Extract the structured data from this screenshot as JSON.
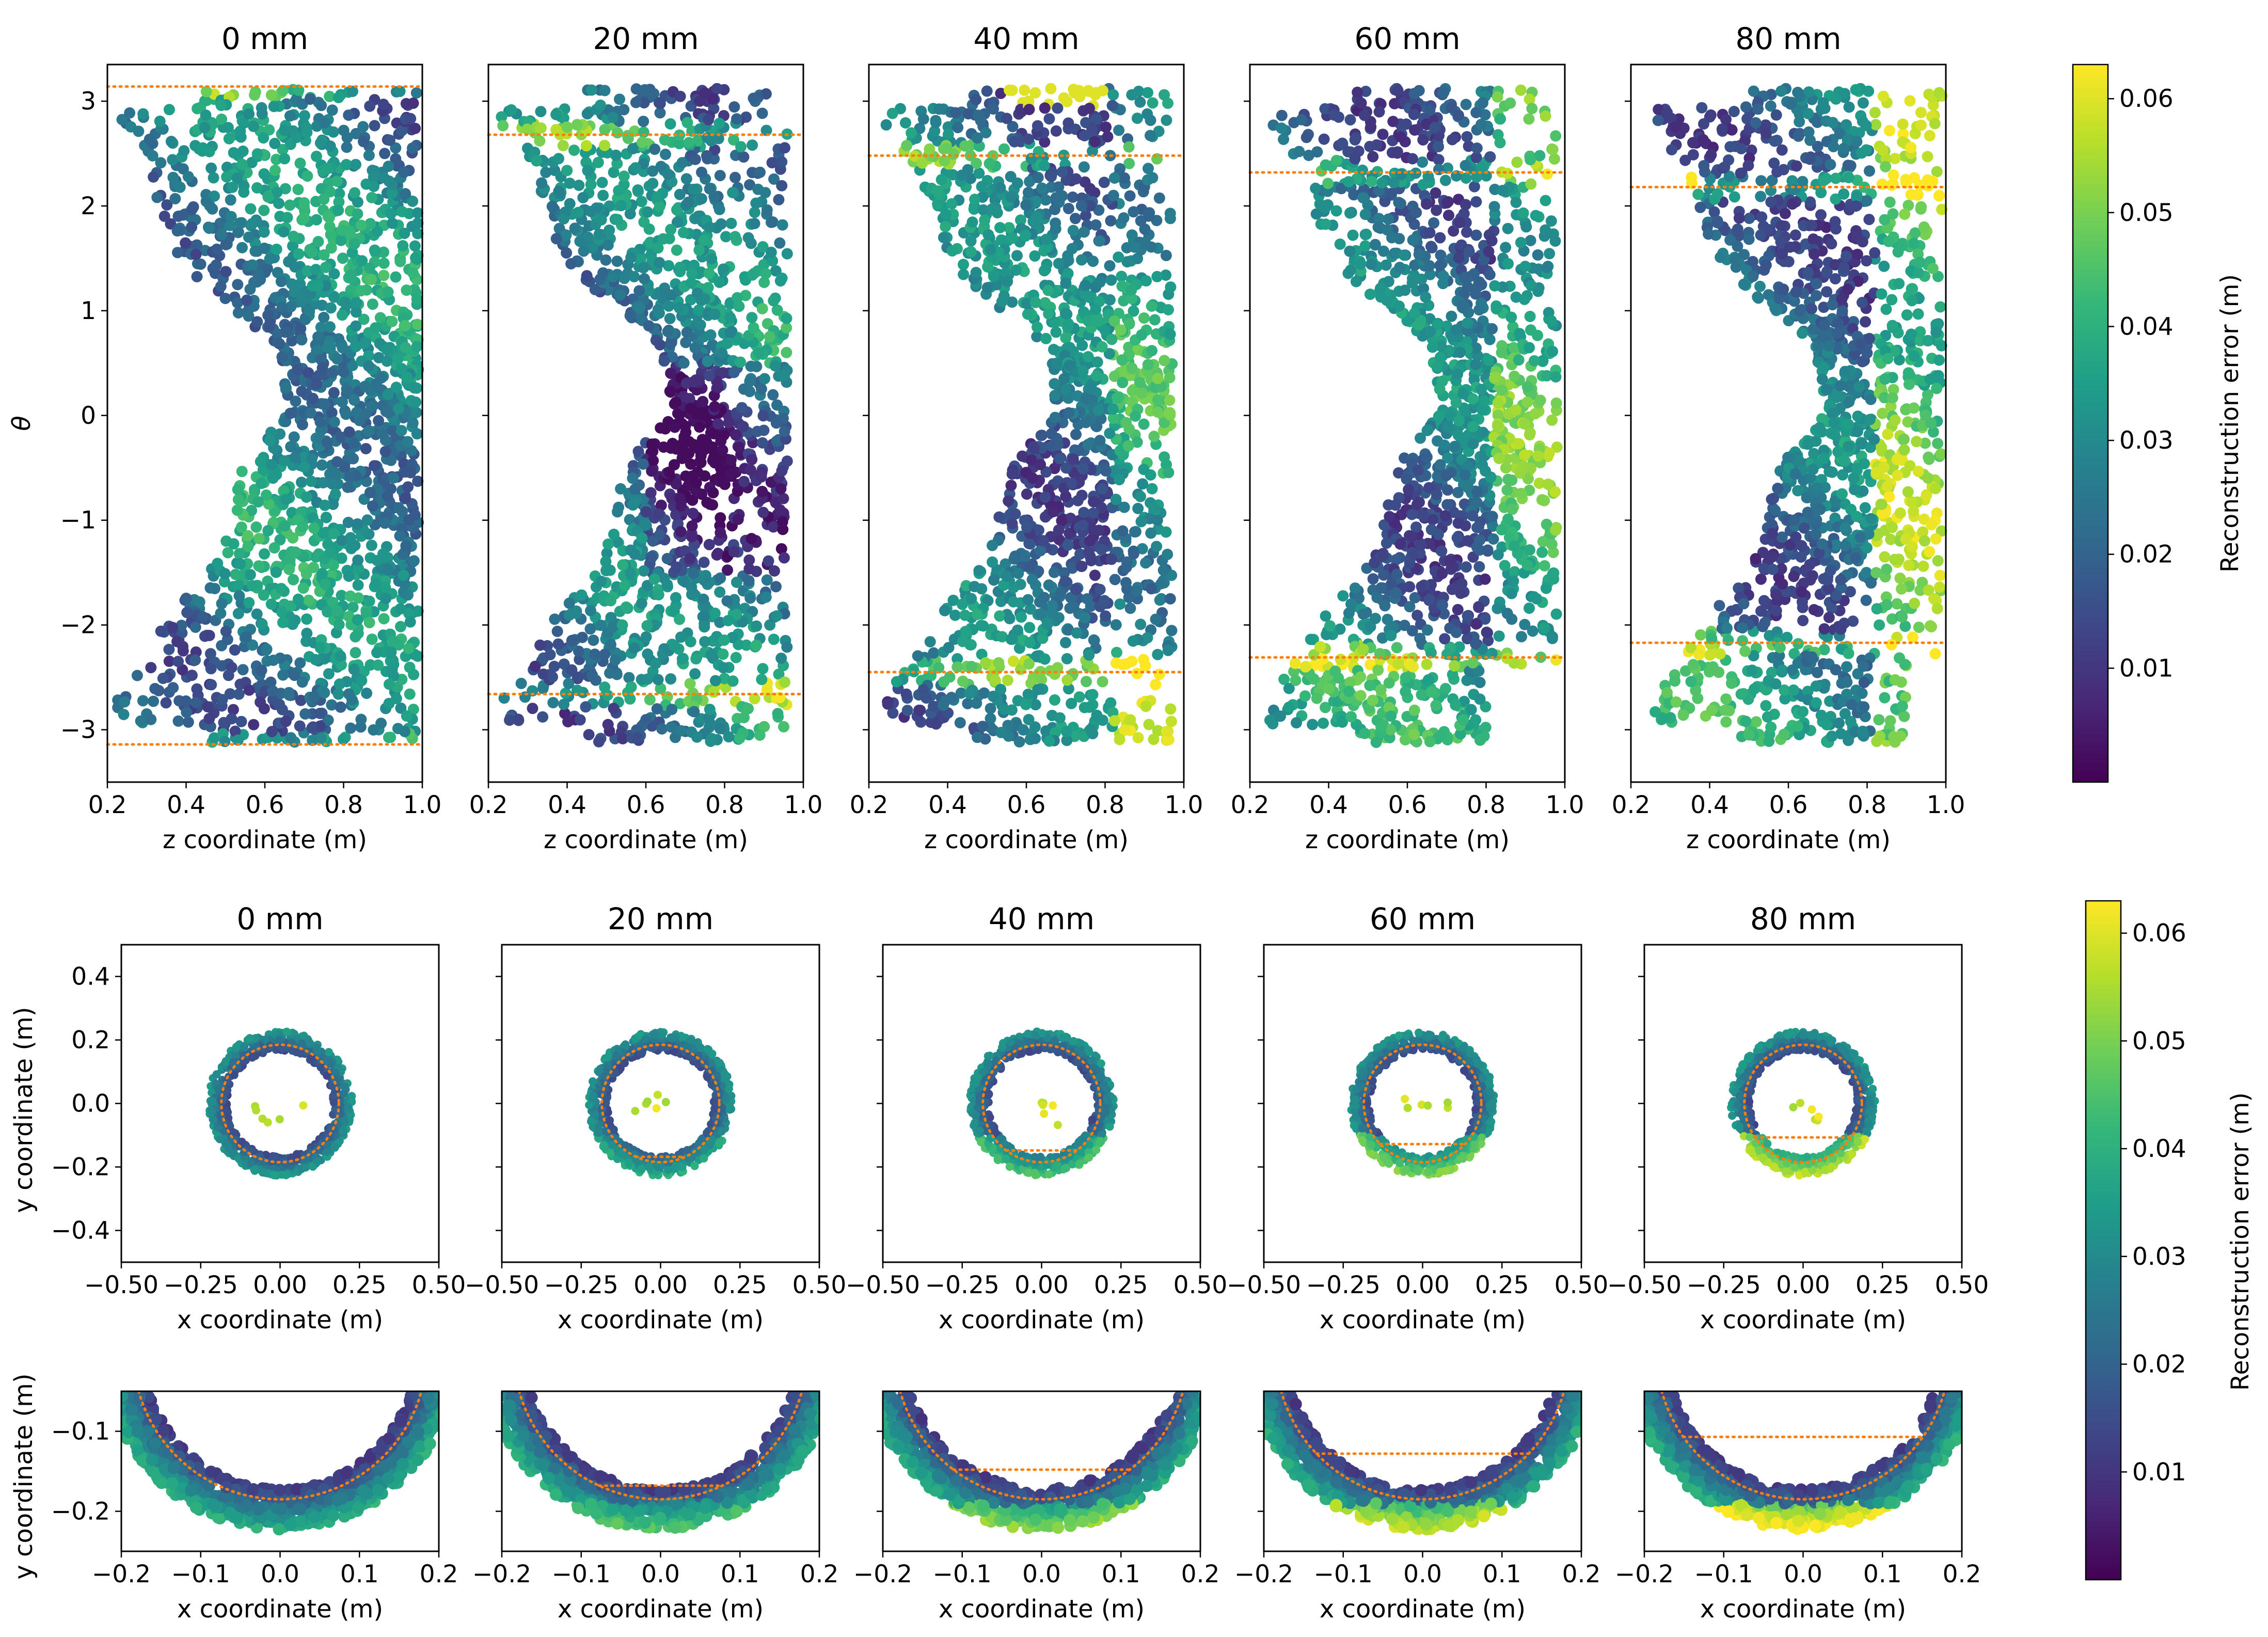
{
  "colors": {
    "viridis": [
      "#440154",
      "#482878",
      "#3e4989",
      "#31688e",
      "#26828e",
      "#1f9e89",
      "#35b779",
      "#6ece58",
      "#b5de2b",
      "#fde725"
    ],
    "reference_line": "#ff7f0e"
  },
  "chart_data": [
    {
      "name": "theta-vs-z",
      "type": "scatter",
      "panel_titles": [
        "0 mm",
        "20 mm",
        "40 mm",
        "60 mm",
        "80 mm"
      ],
      "xlabel": "z coordinate (m)",
      "ylabel": "θ",
      "xlim": [
        0.2,
        1.0
      ],
      "ylim": [
        -3.5,
        3.35
      ],
      "xticks": [
        0.2,
        0.4,
        0.6,
        0.8,
        1.0
      ],
      "xtick_labels": [
        "0.2",
        "0.4",
        "0.6",
        "0.8",
        "1.0"
      ],
      "yticks": [
        3,
        2,
        1,
        0,
        -1,
        -2,
        -3
      ],
      "ytick_labels": [
        "3",
        "2",
        "1",
        "0",
        "−1",
        "−2",
        "−3"
      ],
      "reference_theta": [
        [
          3.14,
          -3.14
        ],
        [
          2.68,
          -2.66
        ],
        [
          2.48,
          -2.45
        ],
        [
          2.32,
          -2.31
        ],
        [
          2.18,
          -2.17
        ]
      ],
      "colorbar": {
        "label": "Reconstruction error (m)",
        "min": 0.0,
        "max": 0.063,
        "ticks": [
          0.01,
          0.02,
          0.03,
          0.04,
          0.05,
          0.06
        ],
        "tick_labels": [
          "0.01",
          "0.02",
          "0.03",
          "0.04",
          "0.05",
          "0.06"
        ]
      }
    },
    {
      "name": "y-vs-x-full",
      "type": "scatter",
      "panel_titles": [
        "0 mm",
        "20 mm",
        "40 mm",
        "60 mm",
        "80 mm"
      ],
      "xlabel": "x coordinate (m)",
      "ylabel": "y coordinate (m)",
      "xlim": [
        -0.5,
        0.5
      ],
      "ylim": [
        -0.5,
        0.5
      ],
      "xticks": [
        -0.5,
        -0.25,
        0.0,
        0.25,
        0.5
      ],
      "xtick_labels": [
        "−0.50",
        "−0.25",
        "0.00",
        "0.25",
        "0.50"
      ],
      "yticks": [
        0.4,
        0.2,
        0.0,
        -0.2,
        -0.4
      ],
      "ytick_labels": [
        "0.4",
        "0.2",
        "0.0",
        "−0.2",
        "−0.4"
      ],
      "circle_radius": 0.185,
      "chord_y": [
        null,
        -0.168,
        -0.148,
        -0.128,
        -0.107
      ],
      "colorbar": {
        "label": "Reconstruction error (m)",
        "min": 0.0,
        "max": 0.063,
        "ticks": [
          0.01,
          0.02,
          0.03,
          0.04,
          0.05,
          0.06
        ],
        "tick_labels": [
          "0.01",
          "0.02",
          "0.03",
          "0.04",
          "0.05",
          "0.06"
        ]
      }
    },
    {
      "name": "y-vs-x-zoom",
      "type": "scatter",
      "xlabel": "x coordinate (m)",
      "ylabel": "y coordinate (m)",
      "xlim": [
        -0.2,
        0.2
      ],
      "ylim": [
        -0.25,
        -0.05
      ],
      "xticks": [
        -0.2,
        -0.1,
        0.0,
        0.1,
        0.2
      ],
      "xtick_labels": [
        "−0.2",
        "−0.1",
        "0.0",
        "0.1",
        "0.2"
      ],
      "yticks": [
        -0.1,
        -0.2
      ],
      "ytick_labels": [
        "−0.1",
        "−0.2"
      ],
      "circle_radius": 0.185,
      "chord_y": [
        null,
        -0.168,
        -0.148,
        -0.128,
        -0.107
      ]
    }
  ]
}
